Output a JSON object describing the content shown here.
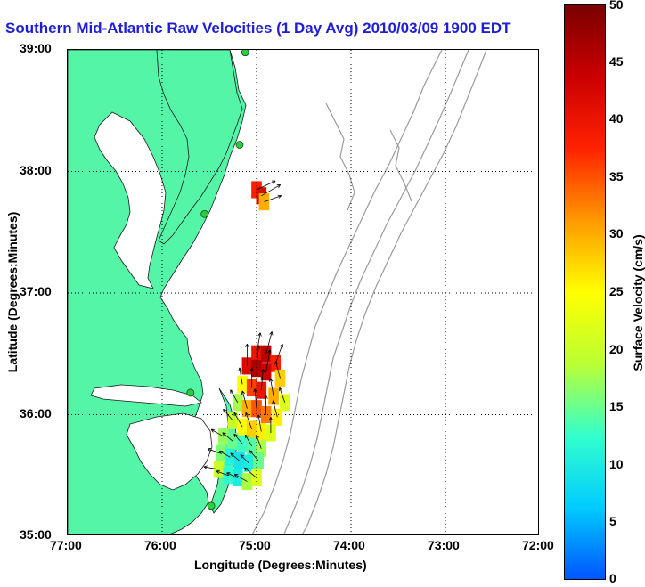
{
  "title": "Southern Mid-Atlantic Raw Velocities (1 Day Avg) 2010/03/09 1900 EDT",
  "axes": {
    "xlabel": "Longitude (Degrees:Minutes)",
    "ylabel": "Latitude (Degrees:Minutes)",
    "xticks": [
      "77:00",
      "76:00",
      "75:00",
      "74:00",
      "73:00",
      "72:00"
    ],
    "yticks": [
      "39:00",
      "38:00",
      "37:00",
      "36:00",
      "35:00"
    ],
    "xlim": [
      -77,
      -72
    ],
    "ylim": [
      35,
      39
    ],
    "grid": true
  },
  "colorbar": {
    "label": "Surface Velocity (cm/s)",
    "ticks": [
      "0",
      "5",
      "10",
      "15",
      "20",
      "25",
      "30",
      "35",
      "40",
      "45",
      "50"
    ],
    "range": [
      0,
      50
    ],
    "colors": [
      "#0055ff",
      "#00ccff",
      "#33ffcc",
      "#bbff33",
      "#ffff00",
      "#ff9900",
      "#ff2200",
      "#cc0000",
      "#7a0000"
    ]
  },
  "colors": {
    "land": "#55f5a8",
    "coast": "#1a1a1a",
    "bathymetry": "#9a9a9a",
    "stations": "#2ecc40",
    "vectors": "#000000"
  },
  "stations": [
    {
      "lon": -75.12,
      "lat": 38.98
    },
    {
      "lon": -75.18,
      "lat": 38.22
    },
    {
      "lon": -75.55,
      "lat": 37.65
    },
    {
      "lon": -75.7,
      "lat": 36.18
    },
    {
      "lon": -75.48,
      "lat": 35.25
    }
  ],
  "velocity_grid": [
    {
      "lon": -75.0,
      "lat": 37.85,
      "speed": 38,
      "dir": 65
    },
    {
      "lon": -74.95,
      "lat": 37.8,
      "speed": 42,
      "dir": 60
    },
    {
      "lon": -74.92,
      "lat": 37.75,
      "speed": 30,
      "dir": 70
    },
    {
      "lon": -75.0,
      "lat": 36.5,
      "speed": 40,
      "dir": 10
    },
    {
      "lon": -74.9,
      "lat": 36.5,
      "speed": 45,
      "dir": 15
    },
    {
      "lon": -74.8,
      "lat": 36.42,
      "speed": 38,
      "dir": 20
    },
    {
      "lon": -75.1,
      "lat": 36.4,
      "speed": 42,
      "dir": 0
    },
    {
      "lon": -75.0,
      "lat": 36.38,
      "speed": 46,
      "dir": 5
    },
    {
      "lon": -74.9,
      "lat": 36.35,
      "speed": 44,
      "dir": 10
    },
    {
      "lon": -74.75,
      "lat": 36.3,
      "speed": 28,
      "dir": 345
    },
    {
      "lon": -75.15,
      "lat": 36.25,
      "speed": 25,
      "dir": 350
    },
    {
      "lon": -75.05,
      "lat": 36.22,
      "speed": 36,
      "dir": 0
    },
    {
      "lon": -74.95,
      "lat": 36.2,
      "speed": 40,
      "dir": 5
    },
    {
      "lon": -74.82,
      "lat": 36.15,
      "speed": 30,
      "dir": 350
    },
    {
      "lon": -74.7,
      "lat": 36.1,
      "speed": 22,
      "dir": 340
    },
    {
      "lon": -75.2,
      "lat": 36.1,
      "speed": 18,
      "dir": 330
    },
    {
      "lon": -75.1,
      "lat": 36.05,
      "speed": 30,
      "dir": 345
    },
    {
      "lon": -75.0,
      "lat": 36.05,
      "speed": 35,
      "dir": 355
    },
    {
      "lon": -74.9,
      "lat": 36.0,
      "speed": 33,
      "dir": 0
    },
    {
      "lon": -74.78,
      "lat": 35.98,
      "speed": 26,
      "dir": 345
    },
    {
      "lon": -75.25,
      "lat": 35.95,
      "speed": 20,
      "dir": 320
    },
    {
      "lon": -75.15,
      "lat": 35.9,
      "speed": 24,
      "dir": 330
    },
    {
      "lon": -75.05,
      "lat": 35.88,
      "speed": 28,
      "dir": 340
    },
    {
      "lon": -74.95,
      "lat": 35.86,
      "speed": 26,
      "dir": 350
    },
    {
      "lon": -74.85,
      "lat": 35.85,
      "speed": 22,
      "dir": 0
    },
    {
      "lon": -75.35,
      "lat": 35.82,
      "speed": 17,
      "dir": 300
    },
    {
      "lon": -75.25,
      "lat": 35.78,
      "speed": 15,
      "dir": 310
    },
    {
      "lon": -75.15,
      "lat": 35.76,
      "speed": 13,
      "dir": 320
    },
    {
      "lon": -75.05,
      "lat": 35.74,
      "speed": 14,
      "dir": 330
    },
    {
      "lon": -74.95,
      "lat": 35.72,
      "speed": 18,
      "dir": 340
    },
    {
      "lon": -75.38,
      "lat": 35.68,
      "speed": 16,
      "dir": 290
    },
    {
      "lon": -75.28,
      "lat": 35.65,
      "speed": 11,
      "dir": 300
    },
    {
      "lon": -75.18,
      "lat": 35.62,
      "speed": 9,
      "dir": 310
    },
    {
      "lon": -75.08,
      "lat": 35.6,
      "speed": 10,
      "dir": 315
    },
    {
      "lon": -74.98,
      "lat": 35.62,
      "speed": 15,
      "dir": 320
    },
    {
      "lon": -75.4,
      "lat": 35.55,
      "speed": 20,
      "dir": 280
    },
    {
      "lon": -75.3,
      "lat": 35.5,
      "speed": 12,
      "dir": 290
    },
    {
      "lon": -75.2,
      "lat": 35.48,
      "speed": 10,
      "dir": 295
    },
    {
      "lon": -75.1,
      "lat": 35.45,
      "speed": 18,
      "dir": 300
    },
    {
      "lon": -75.0,
      "lat": 35.48,
      "speed": 22,
      "dir": 310
    }
  ]
}
